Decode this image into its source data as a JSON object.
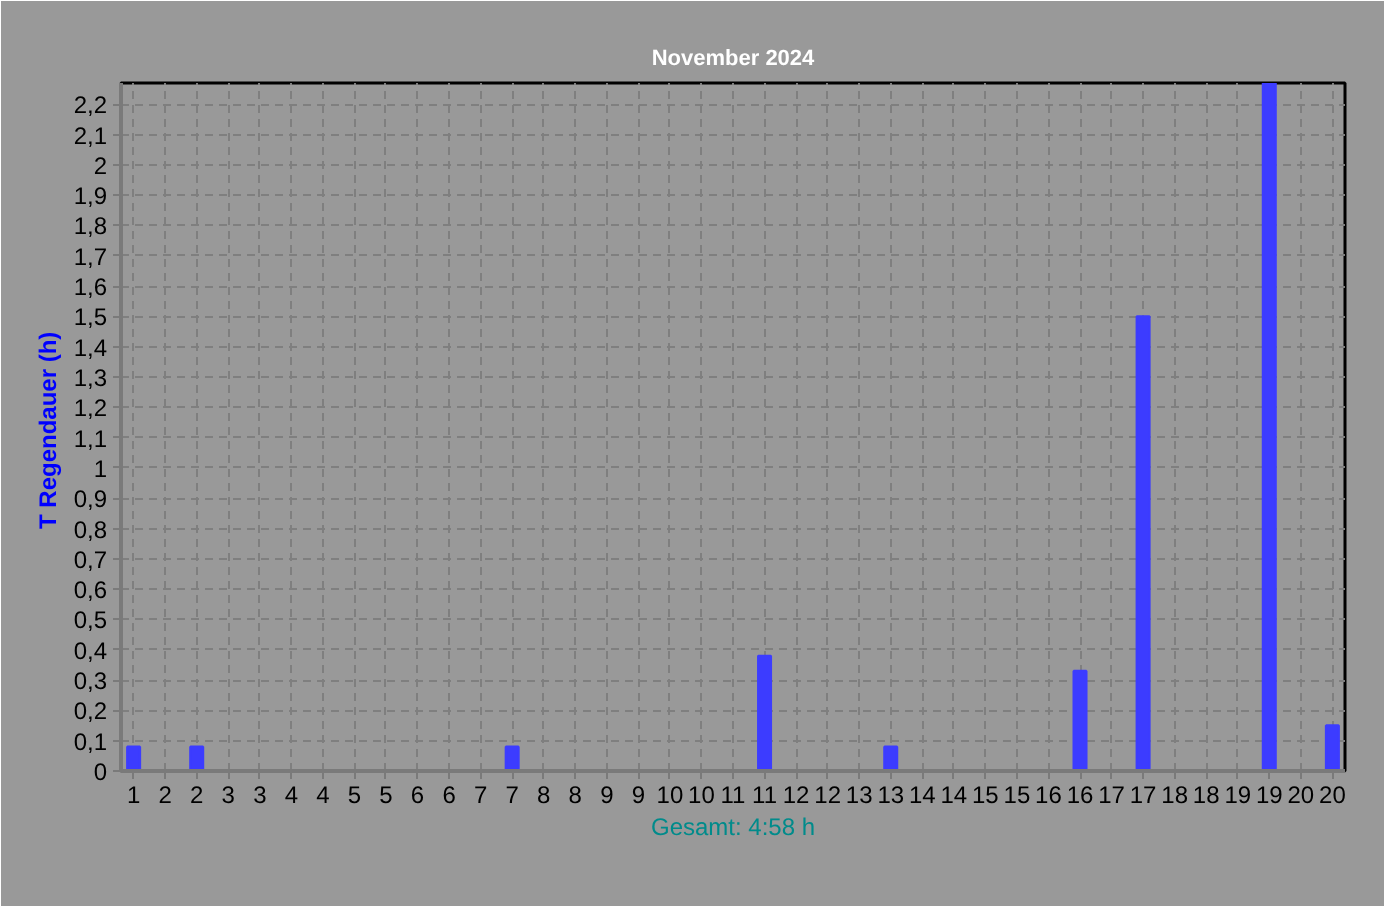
{
  "chart_data": {
    "type": "bar",
    "title": "November 2024",
    "ylabel": "T Regendauer  (h)",
    "annotations": [
      "Gesamt: 4:58 h"
    ],
    "x": [
      1,
      2,
      3,
      4,
      5,
      6,
      7,
      8,
      9,
      10,
      11,
      12,
      13,
      14,
      15,
      16,
      17,
      18,
      19,
      20
    ],
    "values": [
      0.08,
      0.08,
      0,
      0,
      0,
      0,
      0.08,
      0,
      0,
      0,
      0.38,
      0,
      0.08,
      0,
      0,
      0.33,
      1.5,
      0,
      2.27,
      0.15
    ],
    "color": "#3c3cff",
    "xlim": [
      0.8,
      20.2
    ],
    "ylim": [
      0,
      2.27
    ],
    "xticks": [
      1,
      {
        "value": 1.5,
        "label": "2"
      },
      2,
      {
        "value": 2.5,
        "label": "3"
      },
      3,
      {
        "value": 3.5,
        "label": "4"
      },
      4,
      {
        "value": 4.5,
        "label": "5"
      },
      5,
      {
        "value": 5.5,
        "label": "6"
      },
      6,
      {
        "value": 6.5,
        "label": "7"
      },
      7,
      {
        "value": 7.5,
        "label": "8"
      },
      8,
      {
        "value": 8.5,
        "label": "9"
      },
      9,
      {
        "value": 9.5,
        "label": "10"
      },
      10,
      {
        "value": 10.5,
        "label": "11"
      },
      11,
      {
        "value": 11.5,
        "label": "12"
      },
      12,
      {
        "value": 12.5,
        "label": "13"
      },
      13,
      {
        "value": 13.5,
        "label": "14"
      },
      14,
      {
        "value": 14.5,
        "label": "15"
      },
      15,
      {
        "value": 15.5,
        "label": "16"
      },
      16,
      {
        "value": 16.5,
        "label": "17"
      },
      17,
      {
        "value": 17.5,
        "label": "18"
      },
      18,
      {
        "value": 18.5,
        "label": "19"
      },
      19,
      {
        "value": 19.5,
        "label": "20"
      },
      20
    ],
    "yticks": [
      0,
      {
        "value": 0.1,
        "label": "0,1"
      },
      {
        "value": 0.2,
        "label": "0,2"
      },
      {
        "value": 0.3,
        "label": "0,3"
      },
      {
        "value": 0.4,
        "label": "0,4"
      },
      {
        "value": 0.5,
        "label": "0,5"
      },
      {
        "value": 0.6,
        "label": "0,6"
      },
      {
        "value": 0.7,
        "label": "0,7"
      },
      {
        "value": 0.8,
        "label": "0,8"
      },
      {
        "value": 0.9,
        "label": "0,9"
      },
      1,
      {
        "value": 1.1,
        "label": "1,1"
      },
      {
        "value": 1.2,
        "label": "1,2"
      },
      {
        "value": 1.3,
        "label": "1,3"
      },
      {
        "value": 1.4,
        "label": "1,4"
      },
      {
        "value": 1.5,
        "label": "1,5"
      },
      {
        "value": 1.6,
        "label": "1,6"
      },
      {
        "value": 1.7,
        "label": "1,7"
      },
      {
        "value": 1.8,
        "label": "1,8"
      },
      {
        "value": 1.9,
        "label": "1,9"
      },
      2,
      {
        "value": 2.1,
        "label": "2,1"
      },
      {
        "value": 2.2,
        "label": "2,2"
      }
    ],
    "grid": true
  }
}
